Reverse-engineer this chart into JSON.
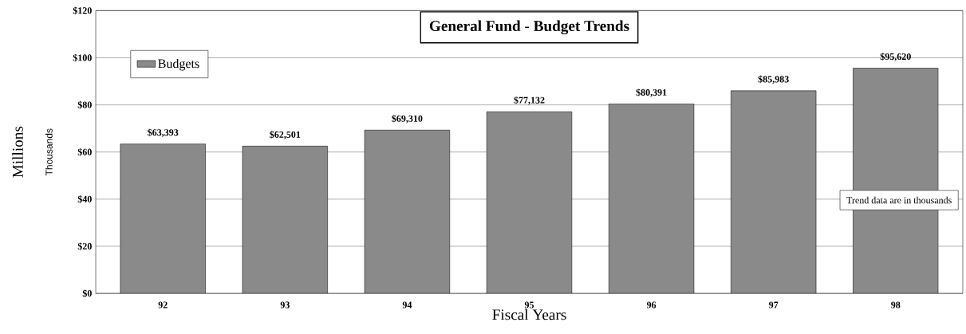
{
  "chart_data": {
    "type": "bar",
    "title": "General Fund - Budget Trends",
    "xlabel": "Fiscal Years",
    "ylabel": "Millions",
    "categories": [
      "92",
      "93",
      "94",
      "95",
      "96",
      "97",
      "98"
    ],
    "series": [
      {
        "name": "Budgets",
        "color": "#8a8a8a",
        "values": [
          63.4,
          62.5,
          69.3,
          77.1,
          80.4,
          86.0,
          95.6
        ]
      }
    ],
    "ylim": [
      0,
      120
    ],
    "yticks": [
      {
        "value": 0,
        "label": "$0"
      },
      {
        "value": 20,
        "label": "$20"
      },
      {
        "value": 40,
        "label": "$40"
      },
      {
        "value": 60,
        "label": "$60"
      },
      {
        "value": 80,
        "label": "$80"
      },
      {
        "value": 100,
        "label": "$100"
      },
      {
        "value": 120,
        "label": "$120"
      }
    ],
    "grid": "y",
    "legend": "top left",
    "annotations": [
      "Thousands",
      "Trend data are in thousands",
      {
        "text": "$63,393",
        "x": "92",
        "y": 63.4
      },
      {
        "text": "$62,501",
        "x": "93",
        "y": 62.5
      },
      {
        "text": "$69,310",
        "x": "94",
        "y": 69.3
      },
      {
        "text": "$77,132",
        "x": "95",
        "y": 77.1
      },
      {
        "text": "$80,391",
        "x": "96",
        "y": 80.4
      },
      {
        "text": "$85,983",
        "x": "97",
        "y": 86.0
      },
      {
        "text": "$95,620",
        "x": "98",
        "y": 95.6
      }
    ]
  }
}
